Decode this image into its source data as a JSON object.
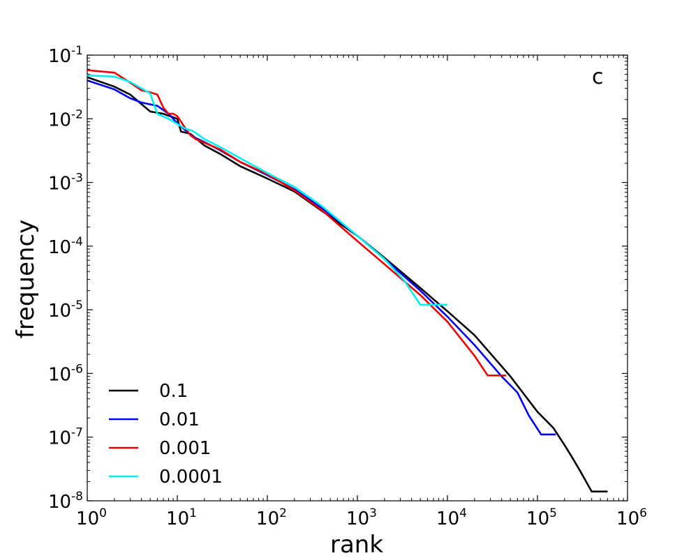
{
  "chart_data": {
    "type": "line",
    "xscale": "log",
    "yscale": "log",
    "xlabel": "rank",
    "ylabel": "frequency",
    "annotation": "c",
    "xlim": [
      1,
      1000000
    ],
    "ylim": [
      1e-08,
      0.1
    ],
    "x_ticks": [
      {
        "base": "10",
        "exp": "0",
        "value": 1
      },
      {
        "base": "10",
        "exp": "1",
        "value": 10
      },
      {
        "base": "10",
        "exp": "2",
        "value": 100
      },
      {
        "base": "10",
        "exp": "3",
        "value": 1000
      },
      {
        "base": "10",
        "exp": "4",
        "value": 10000
      },
      {
        "base": "10",
        "exp": "5",
        "value": 100000
      },
      {
        "base": "10",
        "exp": "6",
        "value": 1000000
      }
    ],
    "y_ticks": [
      {
        "base": "10",
        "exp": "-1",
        "value": 0.1
      },
      {
        "base": "10",
        "exp": "-2",
        "value": 0.01
      },
      {
        "base": "10",
        "exp": "-3",
        "value": 0.001
      },
      {
        "base": "10",
        "exp": "-4",
        "value": 0.0001
      },
      {
        "base": "10",
        "exp": "-5",
        "value": 1e-05
      },
      {
        "base": "10",
        "exp": "-6",
        "value": 1e-06
      },
      {
        "base": "10",
        "exp": "-7",
        "value": 1e-07
      },
      {
        "base": "10",
        "exp": "-8",
        "value": 1e-08
      }
    ],
    "legend_position": "lower-left",
    "series": [
      {
        "name": "0.1",
        "color": "#000000",
        "x": [
          1,
          2,
          3,
          4,
          5,
          7,
          10,
          11,
          14,
          20,
          30,
          50,
          100,
          200,
          400,
          1000,
          2000,
          5000,
          10000,
          20000,
          50000,
          100000,
          150000,
          200000,
          250000,
          300000,
          400000,
          600000
        ],
        "y": [
          0.045,
          0.032,
          0.024,
          0.017,
          0.013,
          0.012,
          0.01,
          0.0063,
          0.0058,
          0.0038,
          0.0028,
          0.0018,
          0.00115,
          0.00072,
          0.00036,
          0.000145,
          6.55e-05,
          2.2e-05,
          9.5e-06,
          4e-06,
          9e-07,
          2.5e-07,
          1.4e-07,
          7.5e-08,
          4.5e-08,
          2.9e-08,
          1.4e-08,
          1.4e-08
        ]
      },
      {
        "name": "0.01",
        "color": "#0000ee",
        "x": [
          1,
          2,
          3,
          4,
          6,
          8,
          10,
          12,
          15,
          20,
          30,
          50,
          100,
          200,
          400,
          1000,
          2000,
          5000,
          10000,
          20000,
          40000,
          60000,
          80000,
          110000,
          160000
        ],
        "y": [
          0.04,
          0.029,
          0.021,
          0.018,
          0.016,
          0.012,
          0.0085,
          0.0068,
          0.0052,
          0.0043,
          0.0032,
          0.0021,
          0.0013,
          0.00078,
          0.0004,
          0.000145,
          6.3e-05,
          2e-05,
          7.8e-06,
          2.8e-06,
          9e-07,
          5e-07,
          2.2e-07,
          1.1e-07,
          1.1e-07
        ]
      },
      {
        "name": "0.001",
        "color": "#ee0000",
        "x": [
          1,
          2,
          3,
          4,
          5,
          6,
          7,
          8,
          9,
          10,
          12,
          14,
          16,
          20,
          30,
          50,
          100,
          200,
          400,
          1000,
          2000,
          5000,
          10000,
          20000,
          28000,
          45000
        ],
        "y": [
          0.058,
          0.053,
          0.037,
          0.028,
          0.026,
          0.024,
          0.015,
          0.012,
          0.012,
          0.011,
          0.0075,
          0.0055,
          0.0048,
          0.0042,
          0.0033,
          0.0021,
          0.00135,
          0.00075,
          0.00037,
          0.00012,
          5.2e-05,
          1.7e-05,
          6.5e-06,
          1.9e-06,
          9.3e-07,
          9.3e-07
        ]
      },
      {
        "name": "0.0001",
        "color": "#00eeee",
        "x": [
          1,
          2,
          3,
          4,
          5,
          6,
          8,
          10,
          12,
          15,
          20,
          30,
          50,
          100,
          200,
          400,
          1000,
          2000,
          3300,
          5000,
          10000
        ],
        "y": [
          0.048,
          0.046,
          0.038,
          0.03,
          0.025,
          0.012,
          0.01,
          0.0083,
          0.0071,
          0.0064,
          0.0048,
          0.0036,
          0.0024,
          0.0014,
          0.00085,
          0.00043,
          0.000145,
          6.3e-05,
          2.9e-05,
          1.2e-05,
          1.2e-05
        ]
      }
    ]
  }
}
